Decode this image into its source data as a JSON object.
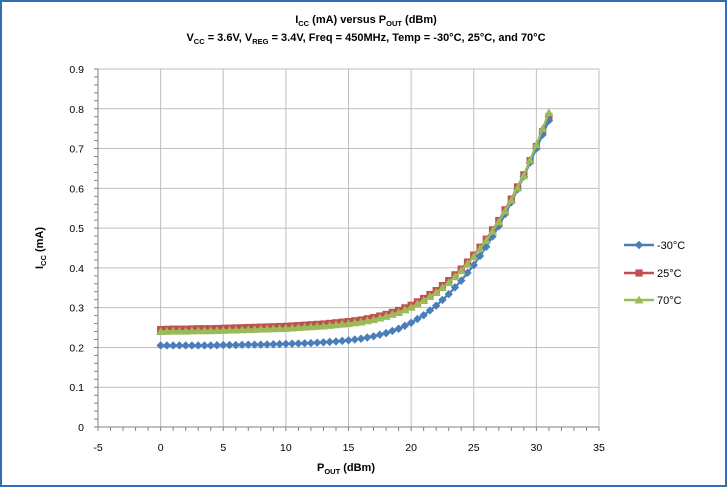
{
  "chart_data": {
    "type": "line",
    "title": {
      "line1": [
        {
          "t": "I"
        },
        {
          "t": "CC",
          "sub": true
        },
        {
          "t": " (mA) versus P"
        },
        {
          "t": "OUT",
          "sub": true
        },
        {
          "t": " (dBm)"
        }
      ],
      "line2": [
        {
          "t": "V"
        },
        {
          "t": "CC",
          "sub": true
        },
        {
          "t": " = 3.6V, V"
        },
        {
          "t": "REG",
          "sub": true
        },
        {
          "t": " = 3.4V, Freq = 450MHz, Temp = -30°C, 25°C, and 70°C"
        }
      ]
    },
    "xlabel": [
      {
        "t": "P"
      },
      {
        "t": "OUT",
        "sub": true
      },
      {
        "t": " (dBm)"
      }
    ],
    "ylabel": [
      {
        "t": "I"
      },
      {
        "t": "CC",
        "sub": true
      },
      {
        "t": " (mA)"
      }
    ],
    "xlim": [
      -5,
      35
    ],
    "ylim": [
      0,
      0.9
    ],
    "xticks": [
      -5,
      0,
      5,
      10,
      15,
      20,
      25,
      30,
      35
    ],
    "yticks": [
      0,
      0.1,
      0.2,
      0.3,
      0.4,
      0.5,
      0.6,
      0.7,
      0.8,
      0.9
    ],
    "xtick_labels": [
      "-5",
      "0",
      "5",
      "10",
      "15",
      "20",
      "25",
      "30",
      "35"
    ],
    "ytick_labels": [
      "0",
      "0.1",
      "0.2",
      "0.3",
      "0.4",
      "0.5",
      "0.6",
      "0.7",
      "0.8",
      "0.9"
    ],
    "grid": true,
    "legend_position": "right",
    "x": [
      0,
      1,
      2,
      3,
      4,
      5,
      6,
      7,
      8,
      9,
      10,
      11,
      12,
      13,
      14,
      15,
      16,
      17,
      18,
      19,
      20,
      21,
      22,
      23,
      24,
      25,
      26,
      27,
      28,
      29,
      30,
      31
    ],
    "series": [
      {
        "name": "-30°C",
        "color": "#4a7ebb",
        "marker": "diamond",
        "values": [
          0.205,
          0.205,
          0.205,
          0.205,
          0.205,
          0.206,
          0.206,
          0.207,
          0.207,
          0.208,
          0.209,
          0.21,
          0.211,
          0.213,
          0.215,
          0.218,
          0.222,
          0.228,
          0.236,
          0.247,
          0.262,
          0.281,
          0.305,
          0.334,
          0.368,
          0.407,
          0.453,
          0.505,
          0.565,
          0.63,
          0.7,
          0.77
        ]
      },
      {
        "name": "25°C",
        "color": "#c0504d",
        "marker": "square",
        "values": [
          0.245,
          0.246,
          0.246,
          0.247,
          0.247,
          0.248,
          0.249,
          0.25,
          0.251,
          0.252,
          0.253,
          0.255,
          0.257,
          0.259,
          0.262,
          0.265,
          0.269,
          0.275,
          0.283,
          0.293,
          0.306,
          0.323,
          0.343,
          0.368,
          0.397,
          0.432,
          0.472,
          0.519,
          0.573,
          0.634,
          0.705,
          0.78
        ]
      },
      {
        "name": "70°C",
        "color": "#9bbb59",
        "marker": "triangle",
        "values": [
          0.24,
          0.241,
          0.241,
          0.242,
          0.242,
          0.243,
          0.244,
          0.245,
          0.246,
          0.247,
          0.248,
          0.25,
          0.252,
          0.254,
          0.257,
          0.26,
          0.264,
          0.27,
          0.278,
          0.288,
          0.301,
          0.318,
          0.338,
          0.363,
          0.393,
          0.428,
          0.469,
          0.516,
          0.57,
          0.632,
          0.71,
          0.79
        ]
      }
    ]
  }
}
